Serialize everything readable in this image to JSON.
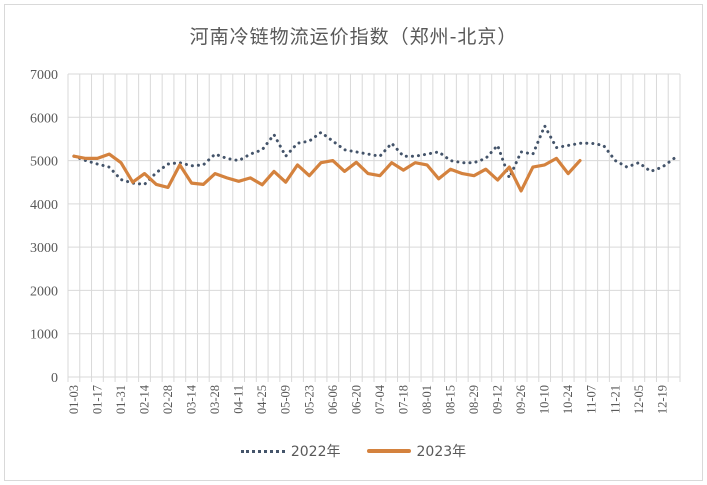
{
  "chart_data": {
    "type": "line",
    "title": "河南冷链物流运价指数（郑州-北京）",
    "xlabel": "",
    "ylabel": "",
    "ylim": [
      0,
      7000
    ],
    "yticks": [
      0,
      1000,
      2000,
      3000,
      4000,
      5000,
      6000,
      7000
    ],
    "grid": true,
    "legend_position": "bottom",
    "x_tick_labels": [
      "01-03",
      "01-17",
      "01-31",
      "02-14",
      "02-28",
      "03-14",
      "03-28",
      "04-11",
      "04-25",
      "05-09",
      "05-23",
      "06-06",
      "06-20",
      "07-04",
      "07-18",
      "08-01",
      "08-15",
      "08-29",
      "09-12",
      "09-26",
      "10-10",
      "10-24",
      "11-07",
      "11-21",
      "12-05",
      "12-19"
    ],
    "x": [
      "01-03",
      "01-10",
      "01-17",
      "01-24",
      "01-31",
      "02-07",
      "02-14",
      "02-21",
      "02-28",
      "03-07",
      "03-14",
      "03-21",
      "03-28",
      "04-04",
      "04-11",
      "04-18",
      "04-25",
      "05-02",
      "05-09",
      "05-16",
      "05-23",
      "05-30",
      "06-06",
      "06-13",
      "06-20",
      "06-27",
      "07-04",
      "07-11",
      "07-18",
      "07-25",
      "08-01",
      "08-08",
      "08-15",
      "08-22",
      "08-29",
      "09-05",
      "09-12",
      "09-19",
      "09-26",
      "10-03",
      "10-10",
      "10-17",
      "10-24",
      "10-31",
      "11-07",
      "11-14",
      "11-21",
      "11-28",
      "12-05",
      "12-12",
      "12-19",
      "12-26"
    ],
    "series": [
      {
        "name": "2022年",
        "style": "dotted",
        "color": "#44546a",
        "values": [
          5100,
          5000,
          4920,
          4850,
          4560,
          4480,
          4450,
          4720,
          4920,
          4950,
          4880,
          4900,
          5150,
          5050,
          5000,
          5150,
          5250,
          5600,
          5100,
          5400,
          5450,
          5650,
          5450,
          5250,
          5200,
          5150,
          5100,
          5400,
          5100,
          5100,
          5150,
          5200,
          5000,
          4950,
          4950,
          5050,
          5350,
          4600,
          5200,
          5150,
          5800,
          5300,
          5350,
          5400,
          5400,
          5350,
          5000,
          4850,
          4950,
          4750,
          4850,
          5050
        ]
      },
      {
        "name": "2023年",
        "style": "solid",
        "color": "#d4823e",
        "values": [
          5100,
          5050,
          5050,
          5150,
          4950,
          4500,
          4700,
          4450,
          4380,
          4900,
          4480,
          4450,
          4700,
          4600,
          4520,
          4600,
          4440,
          4750,
          4500,
          4900,
          4650,
          4950,
          5000,
          4750,
          4960,
          4700,
          4650,
          4950,
          4780,
          4950,
          4900,
          4580,
          4800,
          4700,
          4650,
          4800,
          4550,
          4850,
          4300,
          4850,
          4900,
          5050,
          4700,
          5000,
          null,
          null,
          null,
          null,
          null,
          null,
          null,
          null
        ]
      }
    ]
  },
  "legend": {
    "items": [
      {
        "label": "2022年"
      },
      {
        "label": "2023年"
      }
    ]
  }
}
